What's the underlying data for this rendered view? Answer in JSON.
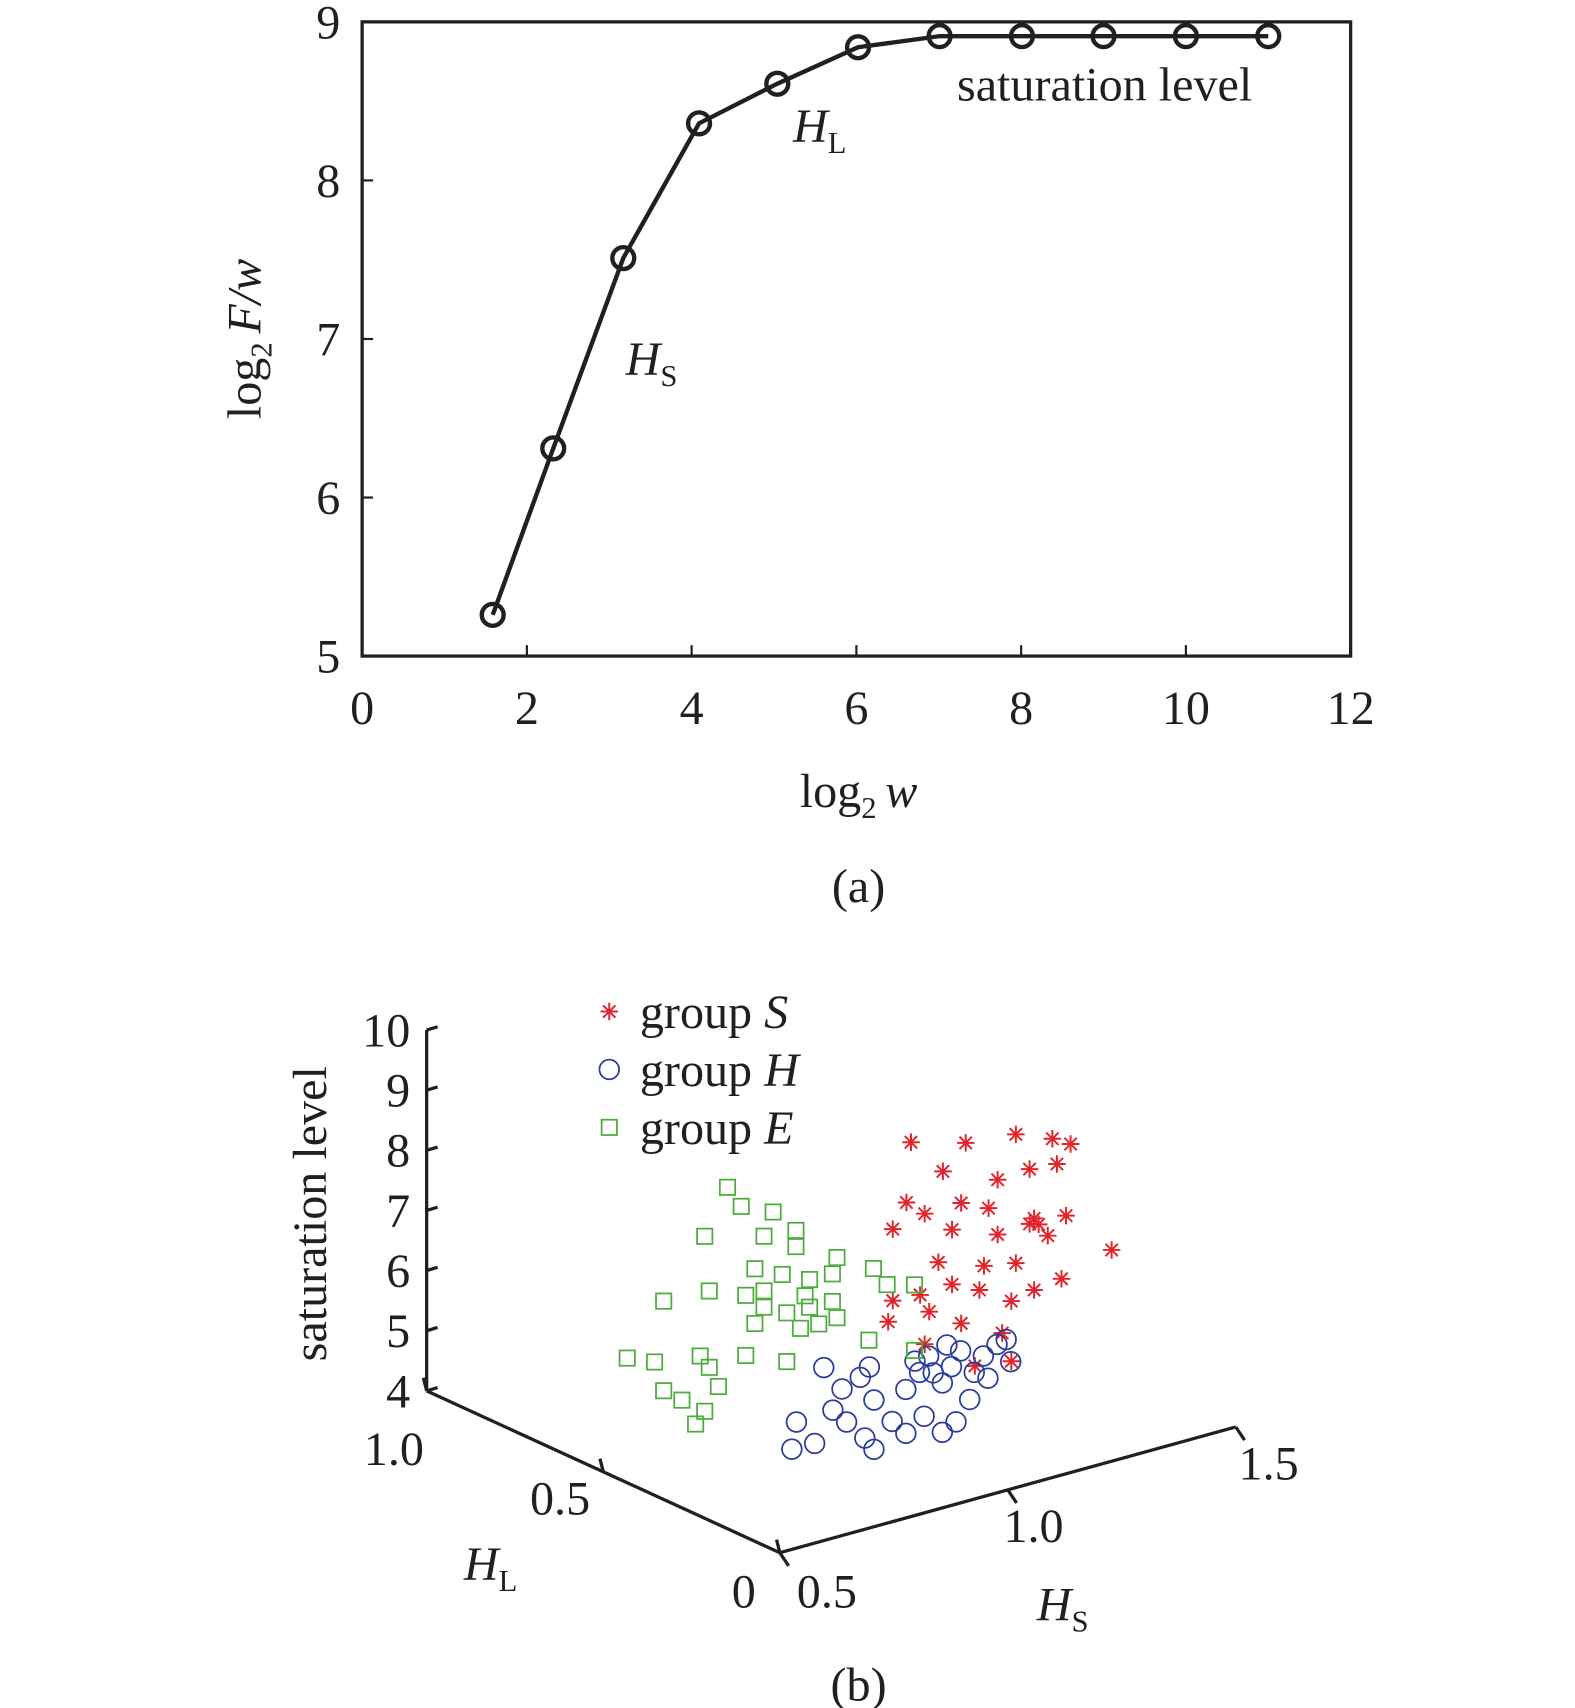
{
  "chart_data": [
    {
      "type": "line",
      "panel_label": "(a)",
      "xlabel": {
        "base": "log",
        "sub": "2",
        "var": "w"
      },
      "ylabel": {
        "base": "log",
        "sub": "2",
        "var": "F/w"
      },
      "xlim": [
        0,
        12
      ],
      "ylim": [
        5,
        9
      ],
      "xticks": [
        "0",
        "2",
        "4",
        "6",
        "8",
        "10",
        "12"
      ],
      "yticks": [
        "5",
        "6",
        "7",
        "8",
        "9"
      ],
      "grid": false,
      "marker": "circle",
      "line_color": "#231f20",
      "x": [
        1.585,
        2.32,
        3.17,
        4.09,
        5.04,
        6.02,
        7.01,
        8.01,
        9.0,
        10.0,
        11.0
      ],
      "y": [
        5.26,
        6.31,
        7.51,
        8.36,
        8.61,
        8.84,
        8.91,
        8.91,
        8.91,
        8.91,
        8.91
      ],
      "annotations": {
        "saturation": "saturation level",
        "hl": {
          "main": "H",
          "sub": "L"
        },
        "hs": {
          "main": "H",
          "sub": "S"
        }
      }
    },
    {
      "type": "scatter3d",
      "panel_label": "(b)",
      "zlabel": "saturation level",
      "xlabel": {
        "main": "H",
        "sub": "S"
      },
      "ylabel": {
        "main": "H",
        "sub": "L"
      },
      "xlim": [
        0.5,
        1.5
      ],
      "ylim": [
        0,
        1.0
      ],
      "zlim": [
        4,
        10
      ],
      "xticks": [
        "0.5",
        "1.0",
        "1.5"
      ],
      "yticks": [
        "0",
        "0.5",
        "1.0"
      ],
      "zticks": [
        "4",
        "5",
        "6",
        "7",
        "8",
        "9",
        "10"
      ],
      "legend_position": "top-left",
      "series": [
        {
          "name": "group S",
          "label": "group ",
          "label_it": "S",
          "marker": "asterisk",
          "color": "#e0242b",
          "HL": 0.3,
          "points": [
            [
              1.02,
              8.93
            ],
            [
              1.14,
              8.67
            ],
            [
              1.25,
              8.58
            ],
            [
              1.33,
              8.34
            ],
            [
              1.37,
              8.17
            ],
            [
              1.09,
              8.3
            ],
            [
              1.21,
              7.91
            ],
            [
              1.28,
              7.94
            ],
            [
              1.34,
              7.9
            ],
            [
              1.01,
              7.95
            ],
            [
              1.05,
              7.68
            ],
            [
              1.13,
              7.69
            ],
            [
              1.19,
              7.48
            ],
            [
              1.29,
              7.1
            ],
            [
              1.36,
              7.0
            ],
            [
              0.98,
              7.57
            ],
            [
              1.11,
              7.29
            ],
            [
              1.21,
              7.0
            ],
            [
              1.28,
              7.03
            ],
            [
              1.32,
              6.75
            ],
            [
              1.08,
              6.81
            ],
            [
              1.18,
              6.54
            ],
            [
              1.25,
              6.44
            ],
            [
              1.35,
              5.97
            ],
            [
              0.98,
              6.38
            ],
            [
              1.04,
              6.35
            ],
            [
              1.11,
              6.38
            ],
            [
              1.17,
              6.16
            ],
            [
              1.24,
              5.83
            ],
            [
              1.29,
              5.91
            ],
            [
              0.97,
              6.05
            ],
            [
              1.06,
              6.03
            ],
            [
              1.13,
              5.69
            ],
            [
              1.22,
              5.34
            ],
            [
              1.05,
              5.51
            ],
            [
              1.16,
              4.92
            ],
            [
              1.24,
              4.83
            ],
            [
              1.46,
              6.22
            ],
            [
              1.3,
              6.98
            ]
          ]
        },
        {
          "name": "group H",
          "label": "group ",
          "label_it": "H",
          "marker": "circle",
          "color": "#2a3c9c",
          "HL": 0.25,
          "points": [
            [
              0.73,
              5.02
            ],
            [
              0.77,
              4.58
            ],
            [
              0.81,
              5.05
            ],
            [
              0.84,
              4.79
            ],
            [
              0.88,
              4.44
            ],
            [
              0.9,
              4.21
            ],
            [
              0.79,
              5.8
            ],
            [
              0.83,
              5.36
            ],
            [
              0.87,
              5.47
            ],
            [
              0.9,
              5.03
            ],
            [
              0.94,
              4.59
            ],
            [
              0.97,
              4.33
            ],
            [
              1.01,
              4.53
            ],
            [
              1.05,
              4.18
            ],
            [
              1.08,
              4.29
            ],
            [
              0.97,
              5.06
            ],
            [
              1.0,
              5.28
            ],
            [
              1.02,
              5.51
            ],
            [
              1.05,
              5.0
            ],
            [
              1.07,
              5.23
            ],
            [
              1.09,
              5.45
            ],
            [
              1.12,
              5.03
            ],
            [
              1.14,
              5.26
            ],
            [
              1.17,
              5.39
            ],
            [
              1.19,
              5.43
            ],
            [
              1.2,
              5.04
            ],
            [
              1.11,
              4.6
            ],
            [
              1.06,
              5.61
            ],
            [
              0.99,
              5.49
            ],
            [
              1.15,
              4.87
            ],
            [
              0.72,
              4.59
            ],
            [
              0.89,
              5.6
            ],
            [
              1.03,
              5.21
            ]
          ]
        },
        {
          "name": "group E",
          "label": "group ",
          "label_it": "E",
          "marker": "square",
          "color": "#4cac3c",
          "HL": 0.6,
          "points": [
            [
              0.85,
              7.73
            ],
            [
              0.88,
              7.35
            ],
            [
              0.95,
              7.11
            ],
            [
              0.8,
              7.02
            ],
            [
              0.93,
              6.75
            ],
            [
              1.0,
              6.7
            ],
            [
              1.0,
              6.43
            ],
            [
              1.09,
              6.06
            ],
            [
              1.17,
              5.71
            ],
            [
              0.91,
              6.25
            ],
            [
              0.97,
              6.03
            ],
            [
              1.03,
              5.82
            ],
            [
              1.08,
              5.81
            ],
            [
              0.71,
              6.13
            ],
            [
              0.81,
              6.09
            ],
            [
              0.89,
              5.85
            ],
            [
              0.93,
              5.57
            ],
            [
              0.98,
              5.37
            ],
            [
              1.03,
              5.36
            ],
            [
              1.08,
              5.35
            ],
            [
              1.2,
              5.38
            ],
            [
              1.26,
              5.25
            ],
            [
              0.91,
              5.34
            ],
            [
              1.01,
              5.05
            ],
            [
              1.05,
              5.04
            ],
            [
              1.09,
              5.06
            ],
            [
              1.16,
              4.54
            ],
            [
              0.89,
              4.85
            ],
            [
              0.98,
              4.56
            ],
            [
              0.63,
              5.35
            ],
            [
              0.69,
              5.16
            ],
            [
              0.79,
              5.05
            ],
            [
              0.81,
              4.82
            ],
            [
              0.71,
              4.64
            ],
            [
              0.75,
              4.4
            ],
            [
              0.8,
              4.11
            ],
            [
              0.78,
              3.94
            ],
            [
              0.83,
              4.46
            ],
            [
              1.26,
              4.16
            ],
            [
              0.93,
              5.84
            ],
            [
              1.02,
              5.57
            ]
          ]
        }
      ]
    }
  ]
}
